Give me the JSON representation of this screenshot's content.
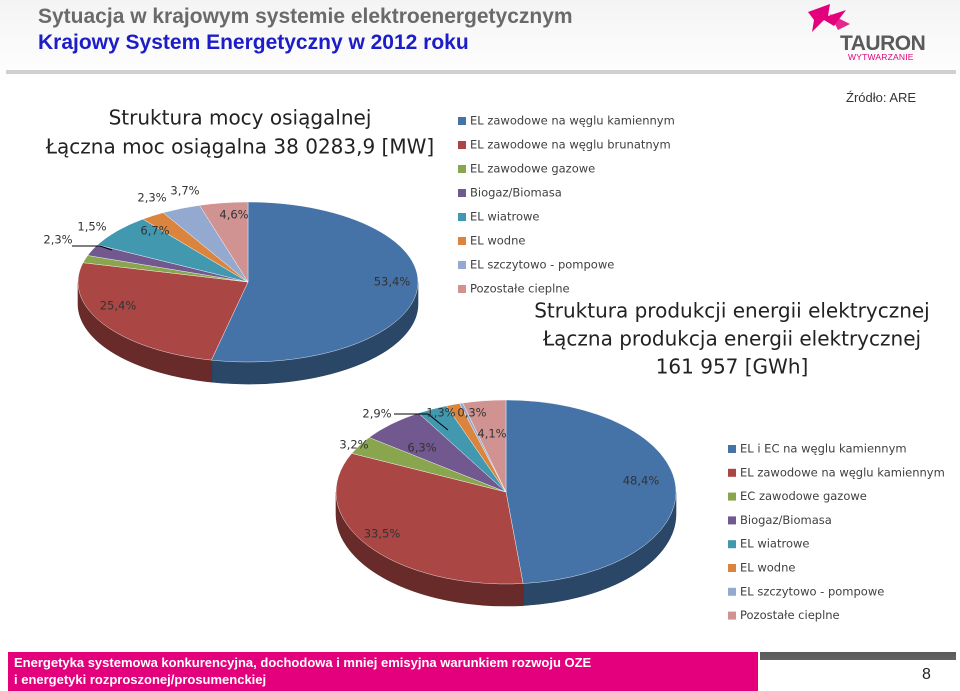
{
  "header": {
    "title": "Sytuacja w krajowym systemie elektroenergetycznym",
    "subtitle": "Krajowy System Energetyczny w 2012 roku"
  },
  "logo": {
    "name": "TAURON",
    "tagline": "WYTWARZANIE",
    "icon": "tauron-logo-icon"
  },
  "source": "Źródło: ARE",
  "colors": {
    "title_gray": "#6a6a6a",
    "subtitle_blue": "#1c1cc8",
    "brand_magenta": "#e4007c"
  },
  "chart_data": [
    {
      "type": "pie",
      "title": "Struktura mocy osiągalnej",
      "subtitle": "Łączna moc osiągalna 38 0283,9 [MW]",
      "categories": [
        "EL zawodowe na węglu kamiennym",
        "EL zawodowe na węglu brunatnym",
        "EL zawodowe gazowe",
        "Biogaz/Biomasa",
        "EL wiatrowe",
        "EL wodne",
        "EL szczytowo - pompowe",
        "Pozostałe cieplne"
      ],
      "values": [
        53.4,
        25.4,
        1.5,
        2.3,
        6.7,
        2.3,
        3.7,
        4.6
      ],
      "labels": [
        "53,4%",
        "25,4%",
        "1,5%",
        "2,3%",
        "6,7%",
        "2,3%",
        "3,7%",
        "4,6%"
      ],
      "colors": [
        "#4572a7",
        "#aa4643",
        "#89a54e",
        "#71588f",
        "#4198af",
        "#db843d",
        "#93a9cf",
        "#d19392"
      ],
      "legend_position": "right"
    },
    {
      "type": "pie",
      "title": "Struktura produkcji energii elektrycznej",
      "subtitle": "Łączna produkcja energii elektrycznej",
      "subtitle2": "161 957 [GWh]",
      "categories": [
        "EL i EC na węglu kamiennym",
        "EL zawodowe na węglu kamiennym",
        "EC zawodowe gazowe",
        "Biogaz/Biomasa",
        "EL wiatrowe",
        "EL wodne",
        "EL szczytowo - pompowe",
        "Pozostałe cieplne"
      ],
      "values": [
        48.4,
        33.5,
        3.2,
        6.3,
        2.9,
        1.3,
        0.3,
        4.1
      ],
      "labels": [
        "48,4%",
        "33,5%",
        "3,2%",
        "6,3%",
        "2,9%",
        "1,3%",
        "0,3%",
        "4,1%"
      ],
      "colors": [
        "#4572a7",
        "#aa4643",
        "#89a54e",
        "#71588f",
        "#4198af",
        "#db843d",
        "#93a9cf",
        "#d19392"
      ],
      "legend_position": "right"
    }
  ],
  "footer": {
    "line1": "Energetyka systemowa konkurencyjna, dochodowa i mniej emisyjna warunkiem rozwoju OZE",
    "line2": "i energetyki rozproszonej/prosumenckiej",
    "page": "8"
  }
}
